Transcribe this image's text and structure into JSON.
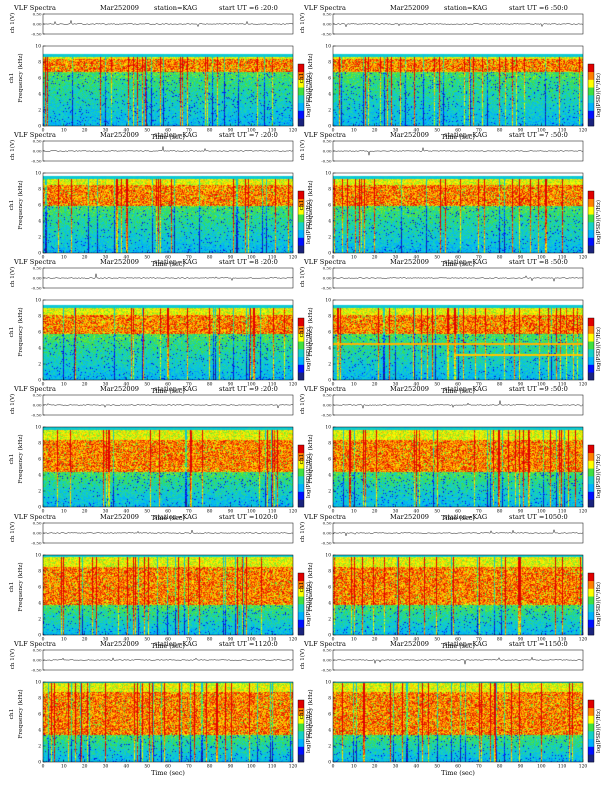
{
  "labels": {
    "plot_title": "VLF Spectra",
    "date": "Mar252009",
    "station": "station=KAG",
    "voltage_axis": "ch 1(V)",
    "channel_label": "ch1",
    "frequency_axis": "Frequency (kHz)",
    "colorbar_label": "log(PSD)(V²/Hz)",
    "time_axis": "Time (sec)"
  },
  "colors": {
    "colormap": [
      "#1a237e",
      "#0010ff",
      "#00b0ff",
      "#14d0c8",
      "#40e040",
      "#ffff00",
      "#ff8000",
      "#e00000"
    ]
  },
  "chart_data": [
    {
      "type": "heatmap",
      "start_label": "start  UT =6 :20:0",
      "xlim": [
        0,
        120
      ],
      "xticks": [
        0,
        10,
        20,
        30,
        40,
        50,
        60,
        70,
        80,
        90,
        100,
        110,
        120
      ],
      "ylim": [
        0,
        10
      ],
      "yticks": [
        0,
        2,
        4,
        6,
        8,
        10
      ],
      "vlim": [
        -0.5,
        0.5
      ],
      "vticks": [
        "0.50",
        "0.00",
        "-0.50"
      ],
      "band_top_khz": 8.7,
      "red_band_khz": [
        6.8,
        8.4
      ],
      "banded": false
    },
    {
      "type": "heatmap",
      "start_label": "start  UT =6 :50:0",
      "xlim": [
        0,
        120
      ],
      "xticks": [
        0,
        10,
        20,
        30,
        40,
        50,
        60,
        70,
        80,
        90,
        100,
        110,
        120
      ],
      "ylim": [
        0,
        10
      ],
      "yticks": [
        0,
        2,
        4,
        6,
        8,
        10
      ],
      "vlim": [
        -0.5,
        0.5
      ],
      "vticks": [
        "0.50",
        "0.00",
        "-0.50"
      ],
      "band_top_khz": 8.7,
      "red_band_khz": [
        6.8,
        8.4
      ],
      "banded": false
    },
    {
      "type": "heatmap",
      "start_label": "start  UT =7 :20:0",
      "xlim": [
        0,
        120
      ],
      "xticks": [
        0,
        10,
        20,
        30,
        40,
        50,
        60,
        70,
        80,
        90,
        100,
        110,
        120
      ],
      "ylim": [
        0,
        10
      ],
      "yticks": [
        0,
        2,
        4,
        6,
        8,
        10
      ],
      "vlim": [
        -0.5,
        0.5
      ],
      "vticks": [
        "0.50",
        "0.00",
        "-0.50"
      ],
      "band_top_khz": 9.3,
      "red_band_khz": [
        6.0,
        8.6
      ],
      "banded": false
    },
    {
      "type": "heatmap",
      "start_label": "start  UT =7 :50:0",
      "xlim": [
        0,
        120
      ],
      "xticks": [
        0,
        10,
        20,
        30,
        40,
        50,
        60,
        70,
        80,
        90,
        100,
        110,
        120
      ],
      "ylim": [
        0,
        10
      ],
      "yticks": [
        0,
        2,
        4,
        6,
        8,
        10
      ],
      "vlim": [
        -0.5,
        0.5
      ],
      "vticks": [
        "0.50",
        "0.00",
        "-0.50"
      ],
      "band_top_khz": 9.3,
      "red_band_khz": [
        6.0,
        8.6
      ],
      "banded": false
    },
    {
      "type": "heatmap",
      "start_label": "start  UT =8 :20:0",
      "xlim": [
        0,
        120
      ],
      "xticks": [
        0,
        10,
        20,
        30,
        40,
        50,
        60,
        70,
        80,
        90,
        100,
        110,
        120
      ],
      "ylim": [
        0,
        10
      ],
      "yticks": [
        0,
        2,
        4,
        6,
        8,
        10
      ],
      "vlim": [
        -0.5,
        0.5
      ],
      "vticks": [
        "0.50",
        "0.00",
        "-0.50"
      ],
      "band_top_khz": 9.0,
      "red_band_khz": [
        5.8,
        8.2
      ],
      "banded": false
    },
    {
      "type": "heatmap",
      "start_label": "start  UT =8 :50:0",
      "xlim": [
        0,
        120
      ],
      "xticks": [
        0,
        10,
        20,
        30,
        40,
        50,
        60,
        70,
        80,
        90,
        100,
        110,
        120
      ],
      "ylim": [
        0,
        10
      ],
      "yticks": [
        0,
        2,
        4,
        6,
        8,
        10
      ],
      "vlim": [
        -0.5,
        0.5
      ],
      "vticks": [
        "0.50",
        "0.00",
        "-0.50"
      ],
      "band_top_khz": 9.0,
      "red_band_khz": [
        5.8,
        8.2
      ],
      "banded": true
    },
    {
      "type": "heatmap",
      "start_label": "start  UT =9 :20:0",
      "xlim": [
        0,
        120
      ],
      "xticks": [
        0,
        10,
        20,
        30,
        40,
        50,
        60,
        70,
        80,
        90,
        100,
        110,
        120
      ],
      "ylim": [
        0,
        10
      ],
      "yticks": [
        0,
        2,
        4,
        6,
        8,
        10
      ],
      "vlim": [
        -0.5,
        0.5
      ],
      "vticks": [
        "0.50",
        "0.00",
        "-0.50"
      ],
      "band_top_khz": 9.7,
      "red_band_khz": [
        4.5,
        8.4
      ],
      "banded": false
    },
    {
      "type": "heatmap",
      "start_label": "start  UT =9 :50:0",
      "xlim": [
        0,
        120
      ],
      "xticks": [
        0,
        10,
        20,
        30,
        40,
        50,
        60,
        70,
        80,
        90,
        100,
        110,
        120
      ],
      "ylim": [
        0,
        10
      ],
      "yticks": [
        0,
        2,
        4,
        6,
        8,
        10
      ],
      "vlim": [
        -0.5,
        0.5
      ],
      "vticks": [
        "0.50",
        "0.00",
        "-0.50"
      ],
      "band_top_khz": 9.7,
      "red_band_khz": [
        4.5,
        8.4
      ],
      "banded": false
    },
    {
      "type": "heatmap",
      "start_label": "start  UT =1020:0",
      "xlim": [
        0,
        120
      ],
      "xticks": [
        0,
        10,
        20,
        30,
        40,
        50,
        60,
        70,
        80,
        90,
        100,
        110,
        120
      ],
      "ylim": [
        0,
        10
      ],
      "yticks": [
        0,
        2,
        4,
        6,
        8,
        10
      ],
      "vlim": [
        -0.5,
        0.5
      ],
      "vticks": [
        "0.50",
        "0.00",
        "-0.50"
      ],
      "band_top_khz": 9.8,
      "red_band_khz": [
        3.8,
        8.6
      ],
      "banded": false
    },
    {
      "type": "heatmap",
      "start_label": "start  UT =1050:0",
      "xlim": [
        0,
        120
      ],
      "xticks": [
        0,
        10,
        20,
        30,
        40,
        50,
        60,
        70,
        80,
        90,
        100,
        110,
        120
      ],
      "ylim": [
        0,
        10
      ],
      "yticks": [
        0,
        2,
        4,
        6,
        8,
        10
      ],
      "vlim": [
        -0.5,
        0.5
      ],
      "vticks": [
        "0.50",
        "0.00",
        "-0.50"
      ],
      "band_top_khz": 9.8,
      "red_band_khz": [
        3.8,
        8.6
      ],
      "banded": false
    },
    {
      "type": "heatmap",
      "start_label": "start  UT =1120:0",
      "xlim": [
        0,
        120
      ],
      "xticks": [
        0,
        10,
        20,
        30,
        40,
        50,
        60,
        70,
        80,
        90,
        100,
        110,
        120
      ],
      "ylim": [
        0,
        10
      ],
      "yticks": [
        0,
        2,
        4,
        6,
        8,
        10
      ],
      "vlim": [
        -0.5,
        0.5
      ],
      "vticks": [
        "0.50",
        "0.00",
        "-0.50"
      ],
      "band_top_khz": 9.9,
      "red_band_khz": [
        3.5,
        8.8
      ],
      "banded": false
    },
    {
      "type": "heatmap",
      "start_label": "start  UT =1150:0",
      "xlim": [
        0,
        120
      ],
      "xticks": [
        0,
        10,
        20,
        30,
        40,
        50,
        60,
        70,
        80,
        90,
        100,
        110,
        120
      ],
      "ylim": [
        0,
        10
      ],
      "yticks": [
        0,
        2,
        4,
        6,
        8,
        10
      ],
      "vlim": [
        -0.5,
        0.5
      ],
      "vticks": [
        "0.50",
        "0.00",
        "-0.50"
      ],
      "band_top_khz": 9.9,
      "red_band_khz": [
        3.5,
        8.8
      ],
      "banded": false
    }
  ]
}
